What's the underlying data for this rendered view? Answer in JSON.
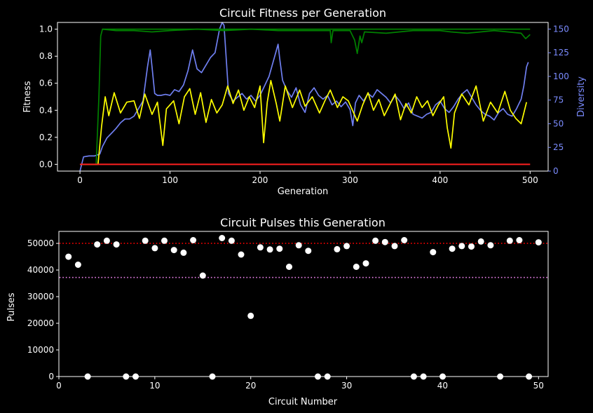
{
  "chart_data": [
    {
      "type": "line",
      "title": "Circuit Fitness per Generation",
      "xlabel": "Generation",
      "ylabel": "Fitness",
      "y2label": "Diversity",
      "xlim": [
        -25,
        520
      ],
      "ylim": [
        -0.05,
        1.05
      ],
      "y2lim": [
        0,
        157
      ],
      "xticks": [
        "0",
        "100",
        "200",
        "300",
        "400",
        "500"
      ],
      "yticks": [
        "0.0",
        "0.2",
        "0.4",
        "0.6",
        "0.8",
        "1.0"
      ],
      "y2ticks": [
        "0",
        "25",
        "50",
        "75",
        "100",
        "125",
        "150"
      ],
      "colors": {
        "max": "#008000",
        "mean": "#ffff00",
        "min": "#ff2020",
        "diversity": "#6f7ff0",
        "axis2": "#7b8cff"
      },
      "series": [
        {
          "key": "max",
          "axis": "left",
          "points": [
            [
              0,
              0
            ],
            [
              18,
              0
            ],
            [
              21,
              0.5
            ],
            [
              23,
              0.95
            ],
            [
              25,
              1.0
            ],
            [
              40,
              0.99
            ],
            [
              60,
              0.99
            ],
            [
              80,
              0.98
            ],
            [
              100,
              0.99
            ],
            [
              130,
              1.0
            ],
            [
              160,
              0.99
            ],
            [
              190,
              1.0
            ],
            [
              220,
              0.99
            ],
            [
              250,
              0.99
            ],
            [
              278,
              0.99
            ],
            [
              279,
              0.9
            ],
            [
              281,
              0.99
            ],
            [
              300,
              0.99
            ],
            [
              305,
              0.92
            ],
            [
              308,
              0.82
            ],
            [
              311,
              0.95
            ],
            [
              313,
              0.9
            ],
            [
              316,
              0.98
            ],
            [
              340,
              0.97
            ],
            [
              370,
              0.99
            ],
            [
              400,
              0.99
            ],
            [
              412,
              0.98
            ],
            [
              430,
              0.97
            ],
            [
              460,
              0.99
            ],
            [
              490,
              0.97
            ],
            [
              495,
              0.93
            ],
            [
              500,
              0.96
            ]
          ]
        },
        {
          "key": "max_envelope",
          "axis": "left",
          "points": [
            [
              25,
              1.0
            ],
            [
              500,
              1.0
            ]
          ]
        },
        {
          "key": "mean",
          "axis": "left",
          "points": [
            [
              0,
              0
            ],
            [
              20,
              0
            ],
            [
              24,
              0.28
            ],
            [
              28,
              0.5
            ],
            [
              32,
              0.36
            ],
            [
              38,
              0.53
            ],
            [
              45,
              0.38
            ],
            [
              52,
              0.46
            ],
            [
              60,
              0.47
            ],
            [
              66,
              0.34
            ],
            [
              72,
              0.52
            ],
            [
              80,
              0.37
            ],
            [
              86,
              0.46
            ],
            [
              92,
              0.14
            ],
            [
              96,
              0.41
            ],
            [
              104,
              0.47
            ],
            [
              110,
              0.3
            ],
            [
              116,
              0.5
            ],
            [
              122,
              0.56
            ],
            [
              128,
              0.37
            ],
            [
              134,
              0.53
            ],
            [
              140,
              0.31
            ],
            [
              146,
              0.48
            ],
            [
              152,
              0.38
            ],
            [
              158,
              0.44
            ],
            [
              164,
              0.58
            ],
            [
              170,
              0.45
            ],
            [
              176,
              0.55
            ],
            [
              182,
              0.4
            ],
            [
              188,
              0.5
            ],
            [
              194,
              0.42
            ],
            [
              200,
              0.58
            ],
            [
              204,
              0.16
            ],
            [
              208,
              0.46
            ],
            [
              212,
              0.62
            ],
            [
              218,
              0.45
            ],
            [
              222,
              0.32
            ],
            [
              228,
              0.58
            ],
            [
              236,
              0.42
            ],
            [
              244,
              0.55
            ],
            [
              250,
              0.43
            ],
            [
              258,
              0.5
            ],
            [
              266,
              0.38
            ],
            [
              272,
              0.47
            ],
            [
              278,
              0.55
            ],
            [
              286,
              0.42
            ],
            [
              292,
              0.5
            ],
            [
              298,
              0.47
            ],
            [
              304,
              0.38
            ],
            [
              308,
              0.32
            ],
            [
              314,
              0.44
            ],
            [
              320,
              0.53
            ],
            [
              326,
              0.4
            ],
            [
              332,
              0.48
            ],
            [
              338,
              0.36
            ],
            [
              344,
              0.44
            ],
            [
              350,
              0.52
            ],
            [
              356,
              0.33
            ],
            [
              362,
              0.45
            ],
            [
              368,
              0.38
            ],
            [
              374,
              0.5
            ],
            [
              380,
              0.42
            ],
            [
              386,
              0.47
            ],
            [
              392,
              0.36
            ],
            [
              398,
              0.44
            ],
            [
              404,
              0.5
            ],
            [
              408,
              0.27
            ],
            [
              412,
              0.12
            ],
            [
              416,
              0.38
            ],
            [
              424,
              0.52
            ],
            [
              432,
              0.44
            ],
            [
              440,
              0.58
            ],
            [
              448,
              0.32
            ],
            [
              456,
              0.46
            ],
            [
              464,
              0.38
            ],
            [
              472,
              0.54
            ],
            [
              478,
              0.4
            ],
            [
              484,
              0.34
            ],
            [
              490,
              0.3
            ],
            [
              496,
              0.46
            ]
          ]
        },
        {
          "key": "min",
          "axis": "left",
          "points": [
            [
              0,
              0
            ],
            [
              500,
              0
            ]
          ]
        },
        {
          "key": "diversity",
          "axis": "right",
          "points": [
            [
              0,
              0
            ],
            [
              4,
              15
            ],
            [
              10,
              16
            ],
            [
              16,
              16
            ],
            [
              22,
              18
            ],
            [
              25,
              26
            ],
            [
              30,
              35
            ],
            [
              35,
              40
            ],
            [
              40,
              45
            ],
            [
              45,
              51
            ],
            [
              50,
              55
            ],
            [
              55,
              55
            ],
            [
              60,
              58
            ],
            [
              65,
              66
            ],
            [
              70,
              74
            ],
            [
              75,
              110
            ],
            [
              78,
              128
            ],
            [
              80,
              110
            ],
            [
              83,
              82
            ],
            [
              86,
              80
            ],
            [
              90,
              80
            ],
            [
              95,
              81
            ],
            [
              100,
              80
            ],
            [
              105,
              86
            ],
            [
              110,
              84
            ],
            [
              115,
              91
            ],
            [
              120,
              106
            ],
            [
              125,
              128
            ],
            [
              130,
              108
            ],
            [
              135,
              104
            ],
            [
              140,
              112
            ],
            [
              145,
              120
            ],
            [
              150,
              125
            ],
            [
              155,
              150
            ],
            [
              158,
              157
            ],
            [
              160,
              154
            ],
            [
              162,
              125
            ],
            [
              165,
              82
            ],
            [
              170,
              74
            ],
            [
              175,
              78
            ],
            [
              180,
              82
            ],
            [
              185,
              76
            ],
            [
              190,
              80
            ],
            [
              195,
              74
            ],
            [
              200,
              80
            ],
            [
              205,
              90
            ],
            [
              210,
              100
            ],
            [
              215,
              117
            ],
            [
              218,
              127
            ],
            [
              220,
              134
            ],
            [
              222,
              118
            ],
            [
              225,
              96
            ],
            [
              230,
              85
            ],
            [
              235,
              78
            ],
            [
              240,
              88
            ],
            [
              245,
              70
            ],
            [
              250,
              62
            ],
            [
              255,
              82
            ],
            [
              260,
              88
            ],
            [
              265,
              80
            ],
            [
              270,
              76
            ],
            [
              275,
              80
            ],
            [
              280,
              70
            ],
            [
              285,
              74
            ],
            [
              290,
              68
            ],
            [
              295,
              73
            ],
            [
              300,
              65
            ],
            [
              303,
              48
            ],
            [
              306,
              72
            ],
            [
              310,
              80
            ],
            [
              315,
              74
            ],
            [
              320,
              82
            ],
            [
              325,
              78
            ],
            [
              330,
              86
            ],
            [
              335,
              82
            ],
            [
              340,
              78
            ],
            [
              345,
              72
            ],
            [
              350,
              80
            ],
            [
              355,
              74
            ],
            [
              360,
              66
            ],
            [
              365,
              72
            ],
            [
              370,
              60
            ],
            [
              375,
              58
            ],
            [
              380,
              56
            ],
            [
              385,
              60
            ],
            [
              390,
              62
            ],
            [
              395,
              70
            ],
            [
              400,
              74
            ],
            [
              405,
              66
            ],
            [
              410,
              62
            ],
            [
              415,
              68
            ],
            [
              420,
              76
            ],
            [
              425,
              82
            ],
            [
              430,
              86
            ],
            [
              435,
              78
            ],
            [
              440,
              70
            ],
            [
              445,
              64
            ],
            [
              450,
              60
            ],
            [
              455,
              58
            ],
            [
              460,
              54
            ],
            [
              465,
              62
            ],
            [
              470,
              66
            ],
            [
              475,
              60
            ],
            [
              480,
              58
            ],
            [
              485,
              66
            ],
            [
              490,
              76
            ],
            [
              493,
              90
            ],
            [
              496,
              110
            ],
            [
              498,
              115
            ]
          ]
        }
      ]
    },
    {
      "type": "scatter",
      "title": "Circuit Pulses this Generation",
      "xlabel": "Circuit Number",
      "ylabel": "Pulses",
      "xlim": [
        0,
        51
      ],
      "ylim": [
        0,
        54500
      ],
      "xticks": [
        "0",
        "10",
        "20",
        "30",
        "40",
        "50"
      ],
      "yticks": [
        "0",
        "10000",
        "20000",
        "30000",
        "40000",
        "50000"
      ],
      "reference_lines": [
        {
          "y": 50000,
          "color": "#ff0000",
          "style": "dotted"
        },
        {
          "y": 37200,
          "color": "#ee82ee",
          "style": "dotted"
        }
      ],
      "x": [
        1,
        2,
        3,
        4,
        5,
        6,
        7,
        8,
        9,
        10,
        11,
        12,
        13,
        14,
        15,
        16,
        17,
        18,
        19,
        20,
        21,
        22,
        23,
        24,
        25,
        26,
        27,
        28,
        29,
        30,
        31,
        32,
        33,
        34,
        35,
        36,
        37,
        38,
        39,
        40,
        41,
        42,
        43,
        44,
        45,
        46,
        47,
        48,
        49,
        50
      ],
      "y": [
        45000,
        42000,
        0,
        49600,
        51000,
        49600,
        0,
        0,
        51000,
        48200,
        51000,
        47500,
        46500,
        51200,
        37900,
        0,
        52000,
        51000,
        45800,
        22800,
        48500,
        47700,
        48000,
        41200,
        49300,
        47200,
        0,
        0,
        47800,
        49000,
        41200,
        42500,
        51000,
        50500,
        49000,
        51200,
        0,
        0,
        46700,
        0,
        48000,
        49000,
        48800,
        50700,
        49300,
        0,
        51000,
        51200,
        0,
        50400
      ]
    }
  ]
}
